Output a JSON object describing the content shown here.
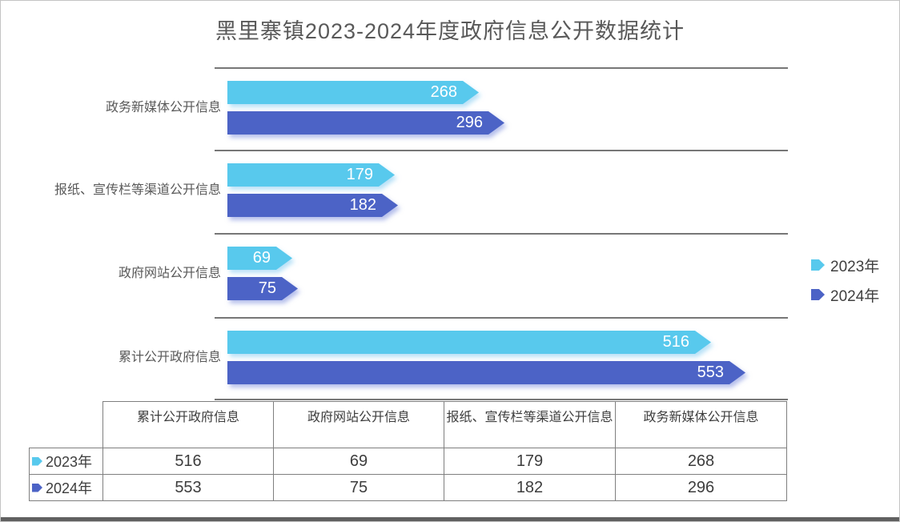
{
  "chart_data": {
    "type": "bar",
    "orientation": "horizontal",
    "title": "黑里寨镇2023-2024年度政府信息公开数据统计",
    "categories": [
      "政务新媒体公开信息",
      "报纸、宣传栏等渠道公开信息",
      "政府网站公开信息",
      "累计公开政府信息"
    ],
    "series": [
      {
        "name": "2023年",
        "color": "#58C9ED",
        "values": [
          268,
          179,
          69,
          516
        ]
      },
      {
        "name": "2024年",
        "color": "#4C63C6",
        "values": [
          296,
          182,
          75,
          553
        ]
      }
    ],
    "value_labels": true,
    "legend_position": "right",
    "grid": "category-separator-lines"
  },
  "legend": {
    "items": [
      {
        "label": "2023年",
        "color": "#58C9ED"
      },
      {
        "label": "2024年",
        "color": "#4C63C6"
      }
    ]
  },
  "table": {
    "columns": [
      "累计公开政府信息",
      "政府网站公开信息",
      "报纸、宣传栏等渠道公开信息",
      "政务新媒体公开信息"
    ],
    "rows": [
      {
        "label": "2023年",
        "marker_color": "#58C9ED",
        "values": [
          "516",
          "69",
          "179",
          "268"
        ]
      },
      {
        "label": "2024年",
        "marker_color": "#4C63C6",
        "values": [
          "553",
          "75",
          "182",
          "296"
        ]
      }
    ]
  },
  "colors": {
    "bar_2023": "#58C9ED",
    "bar_2024": "#4C63C6",
    "gridline": "#777777",
    "table_border": "#7F7F7F",
    "title_text": "#595959",
    "value_label_text": "#FFFFFF"
  }
}
